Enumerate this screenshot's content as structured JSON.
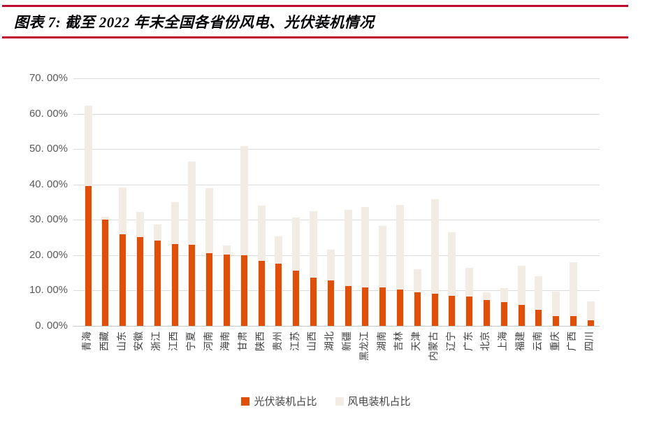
{
  "header": {
    "title": "图表 7: 截至 2022 年末全国各省份风电、光伏装机情况",
    "accent_rule_color": "#C00A2E"
  },
  "chart_data": {
    "type": "bar",
    "bar_style": "overlapped",
    "title": "截至 2022 年末全国各省份风电、光伏装机情况",
    "xlabel": "",
    "ylabel": "",
    "ylim": [
      0,
      70
    ],
    "grid": true,
    "legend_position": "bottom",
    "ytick_values": [
      0,
      10,
      20,
      30,
      40,
      50,
      60,
      70
    ],
    "ytick_labels": [
      "0. 00%",
      "10. 00%",
      "20. 00%",
      "30. 00%",
      "40. 00%",
      "50. 00%",
      "60. 00%",
      "70. 00%"
    ],
    "categories": [
      "青海",
      "西藏",
      "山东",
      "安徽",
      "浙江",
      "江西",
      "宁夏",
      "河南",
      "海南",
      "甘肃",
      "陕西",
      "贵州",
      "江苏",
      "山西",
      "湖北",
      "新疆",
      "黑龙江",
      "湖南",
      "吉林",
      "天津",
      "内蒙古",
      "辽宁",
      "广东",
      "北京",
      "上海",
      "福建",
      "云南",
      "重庆",
      "广西",
      "四川"
    ],
    "series": [
      {
        "name": "光伏装机占比",
        "color": "#DF4F08",
        "values": [
          39.5,
          30.1,
          25.9,
          25.2,
          24.2,
          23.1,
          23.0,
          20.5,
          20.1,
          19.9,
          18.4,
          17.6,
          15.6,
          13.6,
          12.8,
          11.3,
          10.8,
          10.8,
          10.2,
          9.4,
          9.1,
          8.6,
          8.4,
          7.3,
          6.8,
          5.9,
          4.5,
          2.8,
          2.7,
          1.5
        ]
      },
      {
        "name": "风电装机占比",
        "color": "#F3ECE4",
        "values": [
          62.2,
          30.9,
          39.1,
          32.3,
          28.6,
          35.0,
          46.5,
          39.0,
          22.8,
          50.8,
          34.1,
          25.4,
          30.7,
          32.5,
          21.5,
          32.8,
          33.6,
          28.2,
          34.3,
          16.1,
          35.7,
          26.5,
          16.5,
          9.4,
          10.7,
          17.0,
          14.1,
          9.7,
          18.0,
          6.9
        ]
      }
    ]
  },
  "colors": {
    "gridline": "#DBDBDB",
    "baseline": "#C9C9C9",
    "axis_text": "#595959",
    "category_text": "#3F3F3F",
    "background": "#FFFFFF"
  }
}
